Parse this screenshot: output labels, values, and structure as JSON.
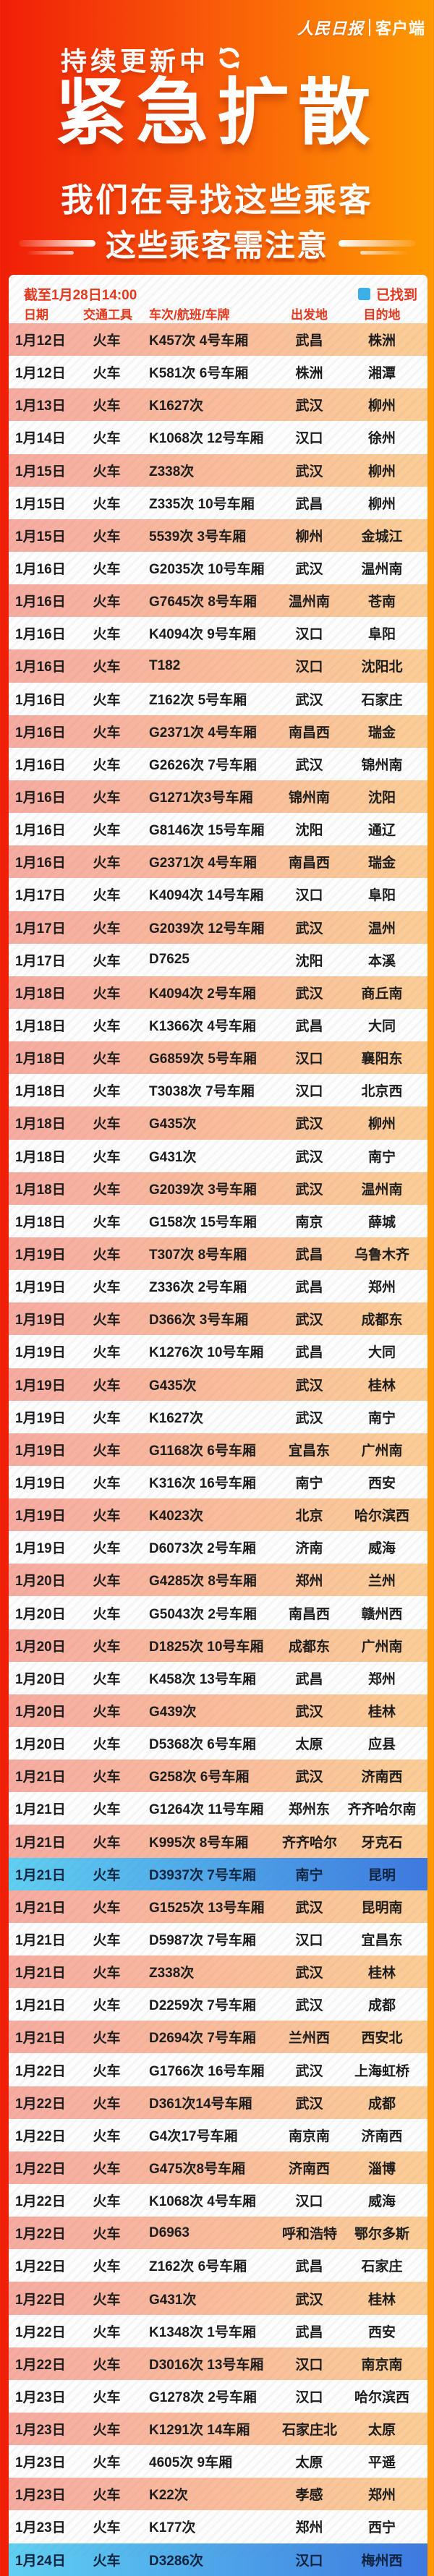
{
  "brand": {
    "name": "人民日报",
    "suffix": "客户端"
  },
  "header": {
    "updating_label": "持续更新中",
    "title": "紧急扩散",
    "subtitle": "我们在寻找这些乘客",
    "banner": "这些乘客需注意"
  },
  "table": {
    "as_of": "截至1月28日14:00",
    "legend": {
      "label": "已找到",
      "color": "#3cb0e8"
    },
    "columns": [
      "日期",
      "交通工具",
      "车次/航班/车牌",
      "出发地",
      "目的地"
    ],
    "rows": [
      {
        "date": "1月12日",
        "mode": "火车",
        "train": "K457次 4号车厢",
        "from": "武昌",
        "to": "株洲",
        "found": false
      },
      {
        "date": "1月12日",
        "mode": "火车",
        "train": "K581次 6号车厢",
        "from": "株洲",
        "to": "湘潭",
        "found": false
      },
      {
        "date": "1月13日",
        "mode": "火车",
        "train": "K1627次",
        "from": "武汉",
        "to": "柳州",
        "found": false
      },
      {
        "date": "1月14日",
        "mode": "火车",
        "train": "K1068次 12号车厢",
        "from": "汉口",
        "to": "徐州",
        "found": false
      },
      {
        "date": "1月15日",
        "mode": "火车",
        "train": "Z338次",
        "from": "武汉",
        "to": "柳州",
        "found": false
      },
      {
        "date": "1月15日",
        "mode": "火车",
        "train": "Z335次 10号车厢",
        "from": "武昌",
        "to": "柳州",
        "found": false
      },
      {
        "date": "1月15日",
        "mode": "火车",
        "train": "5539次 3号车厢",
        "from": "柳州",
        "to": "金城江",
        "found": false
      },
      {
        "date": "1月16日",
        "mode": "火车",
        "train": "G2035次 10号车厢",
        "from": "武汉",
        "to": "温州南",
        "found": false
      },
      {
        "date": "1月16日",
        "mode": "火车",
        "train": "G7645次 8号车厢",
        "from": "温州南",
        "to": "苍南",
        "found": false
      },
      {
        "date": "1月16日",
        "mode": "火车",
        "train": "K4094次 9号车厢",
        "from": "汉口",
        "to": "阜阳",
        "found": false
      },
      {
        "date": "1月16日",
        "mode": "火车",
        "train": "T182",
        "from": "汉口",
        "to": "沈阳北",
        "found": false
      },
      {
        "date": "1月16日",
        "mode": "火车",
        "train": "Z162次 5号车厢",
        "from": "武汉",
        "to": "石家庄",
        "found": false
      },
      {
        "date": "1月16日",
        "mode": "火车",
        "train": "G2371次 4号车厢",
        "from": "南昌西",
        "to": "瑞金",
        "found": false
      },
      {
        "date": "1月16日",
        "mode": "火车",
        "train": "G2626次 7号车厢",
        "from": "武汉",
        "to": "锦州南",
        "found": false
      },
      {
        "date": "1月16日",
        "mode": "火车",
        "train": "G1271次3号车厢",
        "from": "锦州南",
        "to": "沈阳",
        "found": false
      },
      {
        "date": "1月16日",
        "mode": "火车",
        "train": "G8146次 15号车厢",
        "from": "沈阳",
        "to": "通辽",
        "found": false
      },
      {
        "date": "1月16日",
        "mode": "火车",
        "train": "G2371次 4号车厢",
        "from": "南昌西",
        "to": "瑞金",
        "found": false
      },
      {
        "date": "1月17日",
        "mode": "火车",
        "train": "K4094次 14号车厢",
        "from": "汉口",
        "to": "阜阳",
        "found": false
      },
      {
        "date": "1月17日",
        "mode": "火车",
        "train": "G2039次 12号车厢",
        "from": "武汉",
        "to": "温州",
        "found": false
      },
      {
        "date": "1月17日",
        "mode": "火车",
        "train": "D7625",
        "from": "沈阳",
        "to": "本溪",
        "found": false
      },
      {
        "date": "1月18日",
        "mode": "火车",
        "train": "K4094次 2号车厢",
        "from": "武汉",
        "to": "商丘南",
        "found": false
      },
      {
        "date": "1月18日",
        "mode": "火车",
        "train": "K1366次 4号车厢",
        "from": "武昌",
        "to": "大同",
        "found": false
      },
      {
        "date": "1月18日",
        "mode": "火车",
        "train": "G6859次 5号车厢",
        "from": "汉口",
        "to": "襄阳东",
        "found": false
      },
      {
        "date": "1月18日",
        "mode": "火车",
        "train": "T3038次 7号车厢",
        "from": "汉口",
        "to": "北京西",
        "found": false
      },
      {
        "date": "1月18日",
        "mode": "火车",
        "train": "G435次",
        "from": "武汉",
        "to": "柳州",
        "found": false
      },
      {
        "date": "1月18日",
        "mode": "火车",
        "train": "G431次",
        "from": "武汉",
        "to": "南宁",
        "found": false
      },
      {
        "date": "1月18日",
        "mode": "火车",
        "train": "G2039次 3号车厢",
        "from": "武汉",
        "to": "温州南",
        "found": false
      },
      {
        "date": "1月18日",
        "mode": "火车",
        "train": "G158次 15号车厢",
        "from": "南京",
        "to": "薛城",
        "found": false
      },
      {
        "date": "1月19日",
        "mode": "火车",
        "train": "T307次 8号车厢",
        "from": "武昌",
        "to": "乌鲁木齐",
        "found": false
      },
      {
        "date": "1月19日",
        "mode": "火车",
        "train": "Z336次 2号车厢",
        "from": "武昌",
        "to": "郑州",
        "found": false
      },
      {
        "date": "1月19日",
        "mode": "火车",
        "train": "D366次 3号车厢",
        "from": "武汉",
        "to": "成都东",
        "found": false
      },
      {
        "date": "1月19日",
        "mode": "火车",
        "train": "K1276次 10号车厢",
        "from": "武昌",
        "to": "大同",
        "found": false
      },
      {
        "date": "1月19日",
        "mode": "火车",
        "train": "G435次",
        "from": "武汉",
        "to": "桂林",
        "found": false
      },
      {
        "date": "1月19日",
        "mode": "火车",
        "train": "K1627次",
        "from": "武汉",
        "to": "南宁",
        "found": false
      },
      {
        "date": "1月19日",
        "mode": "火车",
        "train": "G1168次 6号车厢",
        "from": "宜昌东",
        "to": "广州南",
        "found": false
      },
      {
        "date": "1月19日",
        "mode": "火车",
        "train": "K316次 16号车厢",
        "from": "南宁",
        "to": "西安",
        "found": false
      },
      {
        "date": "1月19日",
        "mode": "火车",
        "train": "K4023次",
        "from": "北京",
        "to": "哈尔滨西",
        "found": false
      },
      {
        "date": "1月19日",
        "mode": "火车",
        "train": "D6073次 2号车厢",
        "from": "济南",
        "to": "威海",
        "found": false
      },
      {
        "date": "1月20日",
        "mode": "火车",
        "train": "G4285次 8号车厢",
        "from": "郑州",
        "to": "兰州",
        "found": false
      },
      {
        "date": "1月20日",
        "mode": "火车",
        "train": "G5043次 2号车厢",
        "from": "南昌西",
        "to": "赣州西",
        "found": false
      },
      {
        "date": "1月20日",
        "mode": "火车",
        "train": "D1825次 10号车厢",
        "from": "成都东",
        "to": "广州南",
        "found": false
      },
      {
        "date": "1月20日",
        "mode": "火车",
        "train": "K458次 13号车厢",
        "from": "武昌",
        "to": "郑州",
        "found": false
      },
      {
        "date": "1月20日",
        "mode": "火车",
        "train": "G439次",
        "from": "武汉",
        "to": "桂林",
        "found": false
      },
      {
        "date": "1月20日",
        "mode": "火车",
        "train": "D5368次 6号车厢",
        "from": "太原",
        "to": "应县",
        "found": false
      },
      {
        "date": "1月21日",
        "mode": "火车",
        "train": "G258次 6号车厢",
        "from": "武汉",
        "to": "济南西",
        "found": false
      },
      {
        "date": "1月21日",
        "mode": "火车",
        "train": "G1264次 11号车厢",
        "from": "郑州东",
        "to": "齐齐哈尔南",
        "found": false
      },
      {
        "date": "1月21日",
        "mode": "火车",
        "train": "K995次 8号车厢",
        "from": "齐齐哈尔",
        "to": "牙克石",
        "found": false
      },
      {
        "date": "1月21日",
        "mode": "火车",
        "train": "D3937次 7号车厢",
        "from": "南宁",
        "to": "昆明",
        "found": true
      },
      {
        "date": "1月21日",
        "mode": "火车",
        "train": "G1525次 13号车厢",
        "from": "武汉",
        "to": "昆明南",
        "found": false
      },
      {
        "date": "1月21日",
        "mode": "火车",
        "train": "D5987次 7号车厢",
        "from": "汉口",
        "to": "宜昌东",
        "found": false
      },
      {
        "date": "1月21日",
        "mode": "火车",
        "train": "Z338次",
        "from": "武汉",
        "to": "桂林",
        "found": false
      },
      {
        "date": "1月21日",
        "mode": "火车",
        "train": "D2259次 7号车厢",
        "from": "武汉",
        "to": "成都",
        "found": false
      },
      {
        "date": "1月21日",
        "mode": "火车",
        "train": "D2694次 7号车厢",
        "from": "兰州西",
        "to": "西安北",
        "found": false
      },
      {
        "date": "1月22日",
        "mode": "火车",
        "train": "G1766次 16号车厢",
        "from": "武汉",
        "to": "上海虹桥",
        "found": false
      },
      {
        "date": "1月22日",
        "mode": "火车",
        "train": "D361次14号车厢",
        "from": "武汉",
        "to": "成都",
        "found": false
      },
      {
        "date": "1月22日",
        "mode": "火车",
        "train": "G4次17号车厢",
        "from": "南京南",
        "to": "济南西",
        "found": false
      },
      {
        "date": "1月22日",
        "mode": "火车",
        "train": "G475次8号车厢",
        "from": "济南西",
        "to": "淄博",
        "found": false
      },
      {
        "date": "1月22日",
        "mode": "火车",
        "train": "K1068次 4号车厢",
        "from": "汉口",
        "to": "威海",
        "found": false
      },
      {
        "date": "1月22日",
        "mode": "火车",
        "train": "D6963",
        "from": "呼和浩特",
        "to": "鄂尔多斯",
        "found": false
      },
      {
        "date": "1月22日",
        "mode": "火车",
        "train": "Z162次 6号车厢",
        "from": "武昌",
        "to": "石家庄",
        "found": false
      },
      {
        "date": "1月22日",
        "mode": "火车",
        "train": "G431次",
        "from": "武汉",
        "to": "桂林",
        "found": false
      },
      {
        "date": "1月22日",
        "mode": "火车",
        "train": "K1348次 1号车厢",
        "from": "武昌",
        "to": "西安",
        "found": false
      },
      {
        "date": "1月22日",
        "mode": "火车",
        "train": "D3016次 13号车厢",
        "from": "汉口",
        "to": "南京南",
        "found": false
      },
      {
        "date": "1月23日",
        "mode": "火车",
        "train": "G1278次 2号车厢",
        "from": "汉口",
        "to": "哈尔滨西",
        "found": false
      },
      {
        "date": "1月23日",
        "mode": "火车",
        "train": "K1291次 14车厢",
        "from": "石家庄北",
        "to": "太原",
        "found": false
      },
      {
        "date": "1月23日",
        "mode": "火车",
        "train": "4605次 9车厢",
        "from": "太原",
        "to": "平遥",
        "found": false
      },
      {
        "date": "1月23日",
        "mode": "火车",
        "train": "K22次",
        "from": "孝感",
        "to": "郑州",
        "found": false
      },
      {
        "date": "1月23日",
        "mode": "火车",
        "train": "K177次",
        "from": "郑州",
        "to": "西宁",
        "found": false
      },
      {
        "date": "1月24日",
        "mode": "火车",
        "train": "D3286次",
        "from": "汉口",
        "to": "梅州西",
        "found": true
      }
    ]
  },
  "colors": {
    "page_left": "#f01e07",
    "page_right": "#fe9a02",
    "row_tint_left": "#f7aba1",
    "row_tint_right": "#fccd96",
    "found_left": "#5fd0f2",
    "found_right": "#3d79e0",
    "accent_text": "#e5371c"
  }
}
